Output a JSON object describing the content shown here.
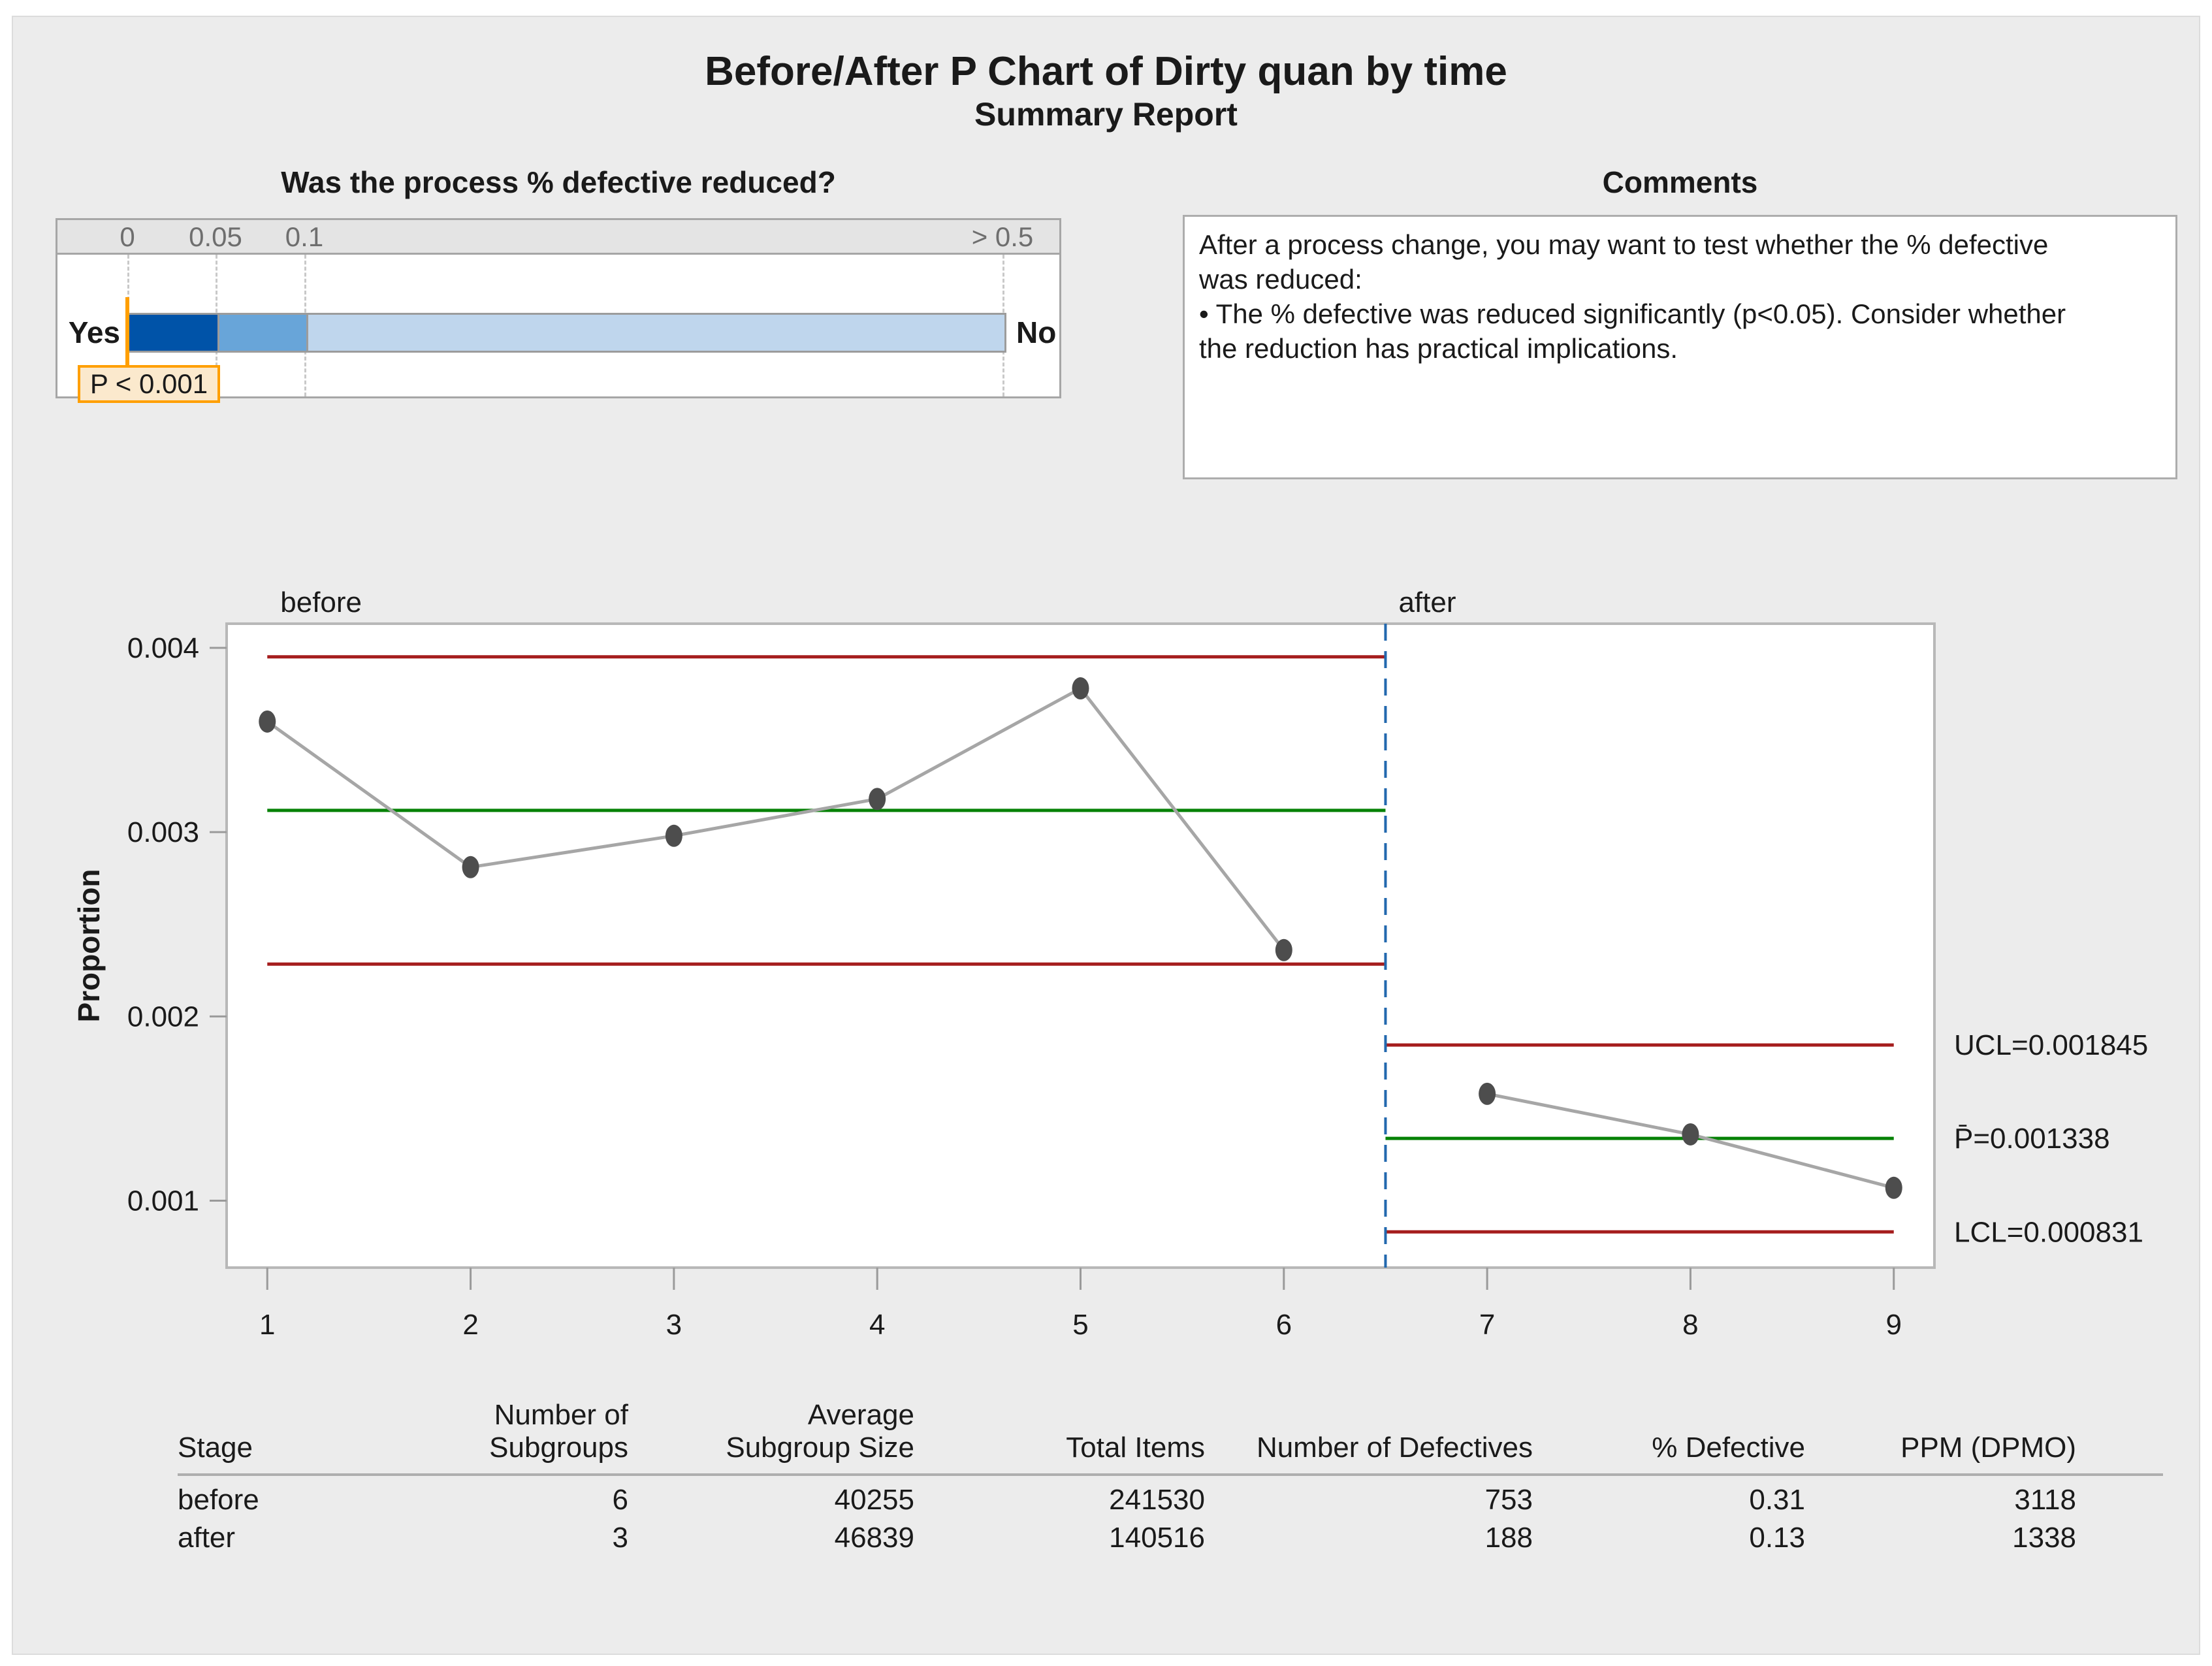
{
  "title": "Before/After P Chart of Dirty quan by time",
  "subtitle": "Summary Report",
  "gauge": {
    "title": "Was the process % defective reduced?",
    "ticks": [
      {
        "label": "0"
      },
      {
        "label": "0.05"
      },
      {
        "label": "0.1"
      },
      {
        "label": "> 0.5"
      }
    ],
    "yes_label": "Yes",
    "no_label": "No",
    "p_callout": "P < 0.001",
    "colors": {
      "segment_dark": "#0053a8",
      "segment_mid": "#68a5d9",
      "segment_light": "#bfd6ed",
      "marker_orange": "#ff9f00",
      "callout_fill": "#fbe9cd"
    }
  },
  "comments": {
    "title": "Comments",
    "lines": [
      "After a process change, you may want to test whether the % defective",
      "was reduced:",
      "•  The % defective was reduced significantly (p<0.05). Consider whether",
      "the reduction has practical implications."
    ]
  },
  "chart_data": {
    "type": "line",
    "title": "",
    "xlabel": "",
    "ylabel": "Proportion",
    "xlim": [
      0.8,
      9.2
    ],
    "ylim": [
      0.000637,
      0.004131
    ],
    "grid": false,
    "xticks": [
      {
        "v": 1,
        "label": "1"
      },
      {
        "v": 2,
        "label": "2"
      },
      {
        "v": 3,
        "label": "3"
      },
      {
        "v": 4,
        "label": "4"
      },
      {
        "v": 5,
        "label": "5"
      },
      {
        "v": 6,
        "label": "6"
      },
      {
        "v": 7,
        "label": "7"
      },
      {
        "v": 8,
        "label": "8"
      },
      {
        "v": 9,
        "label": "9"
      }
    ],
    "yticks": [
      {
        "v": 0.001,
        "label": "0.001"
      },
      {
        "v": 0.002,
        "label": "0.002"
      },
      {
        "v": 0.003,
        "label": "0.003"
      },
      {
        "v": 0.004,
        "label": "0.004"
      }
    ],
    "stage_divider_x": 6.5,
    "stages": [
      {
        "label": "before",
        "span": [
          1,
          6.5
        ],
        "ucl": 0.003951,
        "center": 0.003118,
        "lcl": 0.002284
      },
      {
        "label": "after",
        "span": [
          6.5,
          9
        ],
        "ucl": 0.001845,
        "center": 0.001338,
        "lcl": 0.000831
      }
    ],
    "series": [
      {
        "name": "before",
        "x": [
          1,
          2,
          3,
          4,
          5,
          6
        ],
        "values": [
          0.0036,
          0.00281,
          0.00298,
          0.00318,
          0.00378,
          0.00236
        ]
      },
      {
        "name": "after",
        "x": [
          7,
          8,
          9
        ],
        "values": [
          0.00158,
          0.00136,
          0.00107
        ]
      }
    ],
    "annotations": [
      {
        "label": "UCL=0.001845",
        "v": 0.001845
      },
      {
        "label": "P̄=0.001338",
        "v": 0.001338
      },
      {
        "label": "LCL=0.000831",
        "v": 0.000831
      }
    ],
    "colors": {
      "limit": "#a51d1d",
      "center": "#068206",
      "series": "#a6a6a6",
      "marker": "#4d4d4d",
      "divider": "#2268ae"
    }
  },
  "table": {
    "headers": [
      {
        "line1": "",
        "line2": "Stage"
      },
      {
        "line1": "Number of",
        "line2": "Subgroups"
      },
      {
        "line1": "Average",
        "line2": "Subgroup Size"
      },
      {
        "line1": "",
        "line2": "Total Items"
      },
      {
        "line1": "",
        "line2": "Number of Defectives"
      },
      {
        "line1": "",
        "line2": "% Defective"
      },
      {
        "line1": "",
        "line2": "PPM (DPMO)"
      }
    ],
    "rows": [
      [
        "before",
        "6",
        "40255",
        "241530",
        "753",
        "0.31",
        "3118"
      ],
      [
        "after",
        "3",
        "46839",
        "140516",
        "188",
        "0.13",
        "1338"
      ]
    ]
  }
}
